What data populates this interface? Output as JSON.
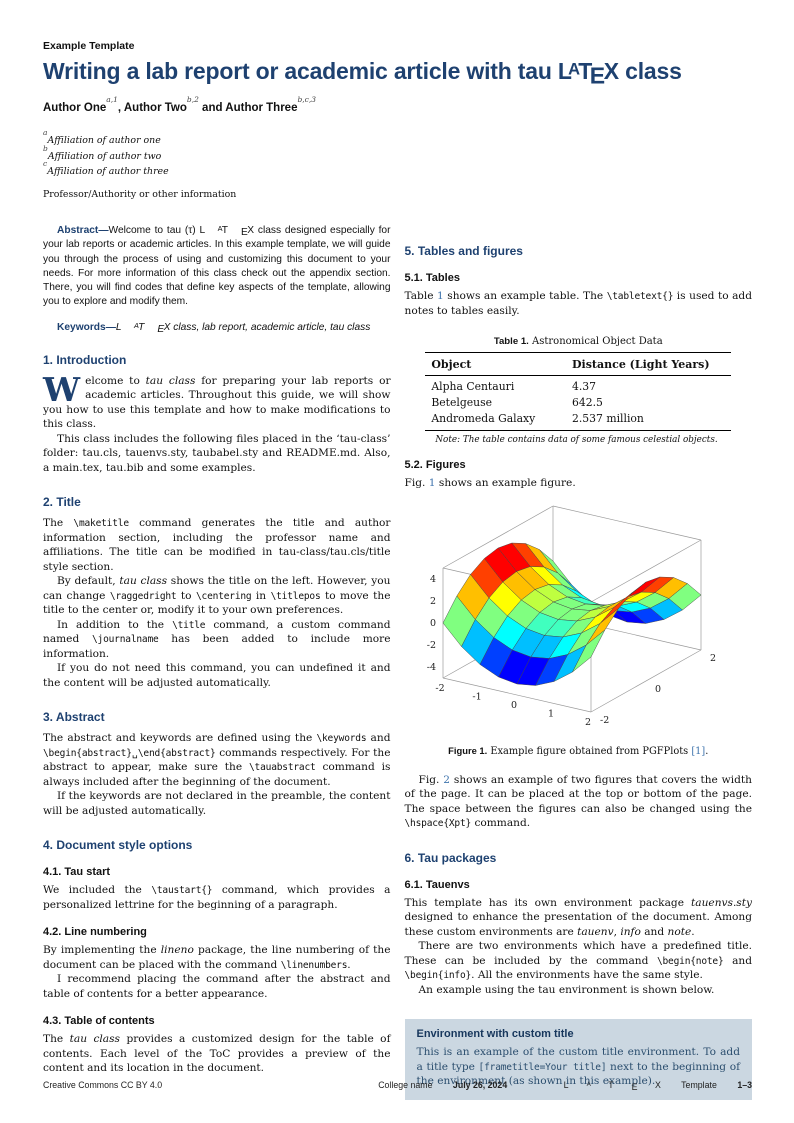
{
  "latex": {
    "L": "L",
    "A": "A",
    "T": "T",
    "E": "E",
    "X": "X"
  },
  "header": {
    "journal": "Example Template",
    "title_pre": "Writing a lab report or academic article with tau ",
    "title_post": " class",
    "authors": [
      {
        "name": "Author One",
        "sup": "a,1",
        "sep": ", "
      },
      {
        "name": "Author Two",
        "sup": "b,2",
        "sep": " and "
      },
      {
        "name": "Author Three",
        "sup": "b,c,3",
        "sep": ""
      }
    ],
    "affiliations": [
      {
        "sup": "a",
        "text": "Affiliation of author one"
      },
      {
        "sup": "b",
        "text": "Affiliation of author two"
      },
      {
        "sup": "c",
        "text": "Affiliation of author three"
      }
    ],
    "professor": "Professor/Authority or other information"
  },
  "abstract": {
    "label": "Abstract—",
    "pre_logo": "Welcome to tau (τ) ",
    "post_logo": " class designed especially for your lab reports or academic articles. In this example template, we will guide you through the process of using and customizing this document to your needs. For more information of this class check out the appendix section. There, you will find codes that define key aspects of the template, allowing you to explore and modify them."
  },
  "keywords": {
    "label": "Keywords—",
    "post_logo": " class, lab report, academic article, tau class"
  },
  "s1": {
    "h": "1. Introduction",
    "dropcap": "W",
    "p1a": "elcome to ",
    "p1i": "tau class",
    "p1b": " for preparing your lab reports or academic articles. Throughout this guide, we will show you how to use this template and how to make modifications to this class.",
    "p2": "This class includes the following files placed in the ‘tau-class’ folder: tau.cls, tauenvs.sty, taubabel.sty and README.md. Also, a main.tex, tau.bib and some examples."
  },
  "s2": {
    "h": "2. Title",
    "p1a": "The ",
    "p1c": "\\maketitle",
    "p1b": " command generates the title and author information section, including the professor name and affiliations. The title can be modified in tau-class/tau.cls/title style section.",
    "p2a": "By default, ",
    "p2i": "tau class",
    "p2b": " shows the title on the left. However, you can change ",
    "p2c1": "\\raggedright",
    "p2m1": " to ",
    "p2c2": "\\centering",
    "p2m2": " in ",
    "p2c3": "\\titlepos",
    "p2e": " to move the title to the center or, modify it to your own preferences.",
    "p3a": "In addition to the ",
    "p3c1": "\\title",
    "p3b": " command, a custom command named ",
    "p3c2": "\\journalname",
    "p3e": " has been added to include more information.",
    "p4": "If you do not need this command, you can undefined it and the content will be adjusted automatically."
  },
  "s3": {
    "h": "3. Abstract",
    "p1a": "The abstract and keywords are defined using the ",
    "p1c1": "\\keywords",
    "p1m1": " and ",
    "p1c2": "\\begin{abstract}␣\\end{abstract}",
    "p1b": " commands respectively. For the abstract to appear, make sure the ",
    "p1c3": "\\tauabstract",
    "p1e": " command is always included after the beginning of the document.",
    "p2": "If the keywords are not declared in the preamble, the content will be adjusted automatically."
  },
  "s4": {
    "h": "4. Document style options",
    "s41h": "4.1. Tau start",
    "s41pa": "We included the ",
    "s41pc": "\\taustart{}",
    "s41pb": " command, which provides a personalized lettrine for the beginning of a paragraph.",
    "s42h": "4.2. Line numbering",
    "s42p1a": "By implementing the ",
    "s42p1i": "lineno",
    "s42p1b": " package, the line numbering of the document can be placed with the command ",
    "s42p1c": "\\linenumbers",
    "s42p1e": ".",
    "s42p2": "I recommend placing the command after the abstract and table of contents for a better appearance.",
    "s43h": "4.3. Table of contents",
    "s43pa": "The ",
    "s43pi": "tau class",
    "s43pb": " provides a customized design for the table of contents. Each level of the ToC provides a preview of the content and its location in the document."
  },
  "s5": {
    "h": "5. Tables and figures",
    "s51h": "5.1. Tables",
    "s51pa": "Table ",
    "s51link": "1",
    "s51pb": " shows an example table. The ",
    "s51pc": "\\tabletext{}",
    "s51pe": " is used to add notes to tables easily.",
    "s52h": "5.2. Figures",
    "s52pa": "Fig. ",
    "s52link": "1",
    "s52pb": " shows an example figure.",
    "fig_caption_label": "Figure 1.",
    "fig_caption_a": " Example figure obtained from PGFPlots ",
    "fig_cite": "[1]",
    "fig_caption_b": ".",
    "p2a": "Fig. ",
    "p2link": "2",
    "p2b": " shows an example of two figures that covers the width of the page. It can be placed at the top or bottom of the page. The space between the figures can also be changed using the ",
    "p2c": "\\hspace{Xpt}",
    "p2e": " command."
  },
  "table1": {
    "caption_label": "Table 1.",
    "caption_text": " Astronomical Object Data",
    "col1": "Object",
    "col2": "Distance (Light Years)",
    "rows": [
      [
        "Alpha Centauri",
        "4.37"
      ],
      [
        "Betelgeuse",
        "642.5"
      ],
      [
        "Andromeda Galaxy",
        "2.537 million"
      ]
    ],
    "note_label": "Note:",
    "note_text": " The table contains data of some famous celestial objects."
  },
  "figure1": {
    "description": "3D saddle surface plot, z = x^2 - y^2, jet colormap (blue valley, yellow mid, red peaks)",
    "function": "z = x^2 - y^2",
    "x_range": [
      -2,
      2
    ],
    "y_range": [
      -2,
      2
    ],
    "z_box": [
      -5,
      5
    ],
    "x_ticks": [
      -2,
      -1,
      0,
      1,
      2
    ],
    "y_ticks": [
      -2,
      0,
      2
    ],
    "z_ticks": [
      -4,
      -2,
      0,
      2,
      4
    ],
    "mesh_step": 0.5,
    "colormap": "jet"
  },
  "s6": {
    "h": "6. Tau packages",
    "s61h": "6.1. Tauenvs",
    "p1a": "This template has its own environment package ",
    "p1i1": "tauenvs.sty",
    "p1b": " designed to enhance the presentation of the document. Among these custom environments are ",
    "p1i2": "tauenv",
    "p1m1": ", ",
    "p1i3": "info",
    "p1m2": " and ",
    "p1i4": "note",
    "p1e": ".",
    "p2a": "There are two environments which have a predefined title. These can be included by the command ",
    "p2c1": "\\begin{note}",
    "p2m": " and ",
    "p2c2": "\\begin{info}",
    "p2e": ". All the environments have the same style.",
    "p3": "An example using the tau environment is shown below."
  },
  "envbox": {
    "title": "Environment with custom title",
    "pa": "This is an example of the custom title environment. To add a title type ",
    "pc": "[frametitle=Your title]",
    "pb": " next to the beginning of the environment (as shown in this example)."
  },
  "footer": {
    "left": "Creative Commons CC BY 4.0",
    "college": "College name",
    "date": "July 26, 2024",
    "template_suffix": " Template",
    "pages": "1–3"
  }
}
